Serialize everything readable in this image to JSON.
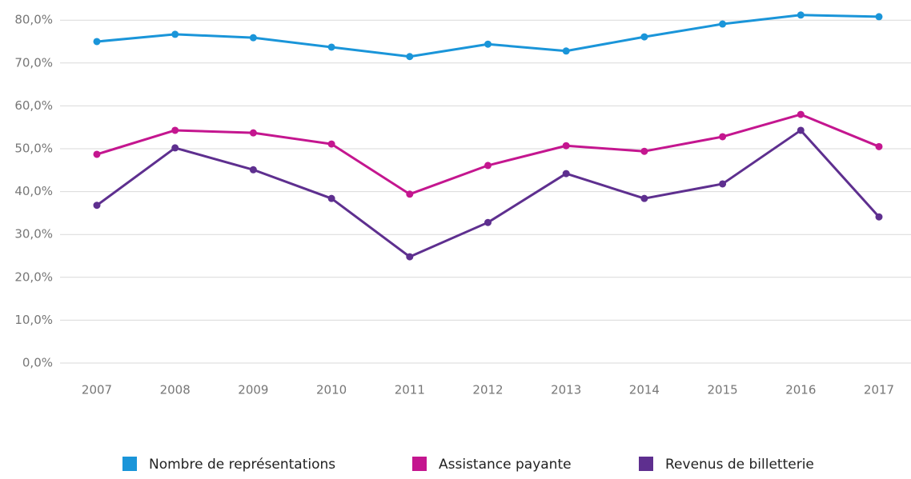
{
  "chart_data": {
    "type": "line",
    "categories": [
      "2007",
      "2008",
      "2009",
      "2010",
      "2011",
      "2012",
      "2013",
      "2014",
      "2015",
      "2016",
      "2017"
    ],
    "series": [
      {
        "name": "Nombre de représentations",
        "color": "#1a95d9",
        "values": [
          75.0,
          76.7,
          75.9,
          73.7,
          71.5,
          74.4,
          72.8,
          76.1,
          79.1,
          81.2,
          80.8
        ]
      },
      {
        "name": "Assistance payante",
        "color": "#c4168f",
        "values": [
          48.7,
          54.3,
          53.7,
          51.1,
          39.4,
          46.1,
          50.7,
          49.4,
          52.8,
          58.0,
          50.5
        ]
      },
      {
        "name": "Revenus de billetterie",
        "color": "#5e2f8f",
        "values": [
          36.8,
          50.2,
          45.1,
          38.4,
          24.8,
          32.8,
          44.2,
          38.4,
          41.8,
          54.3,
          34.1
        ]
      }
    ],
    "ylim": [
      0,
      84.7
    ],
    "yticks": [
      {
        "value": 0,
        "label": "0,0%"
      },
      {
        "value": 10,
        "label": "10,0%"
      },
      {
        "value": 20,
        "label": "20,0%"
      },
      {
        "value": 30,
        "label": "30,0%"
      },
      {
        "value": 40,
        "label": "40,0%"
      },
      {
        "value": 50,
        "label": "50,0%"
      },
      {
        "value": 60,
        "label": "60,0%"
      },
      {
        "value": 70,
        "label": "70,0%"
      },
      {
        "value": 80,
        "label": "80,0%"
      }
    ],
    "grid": true
  }
}
